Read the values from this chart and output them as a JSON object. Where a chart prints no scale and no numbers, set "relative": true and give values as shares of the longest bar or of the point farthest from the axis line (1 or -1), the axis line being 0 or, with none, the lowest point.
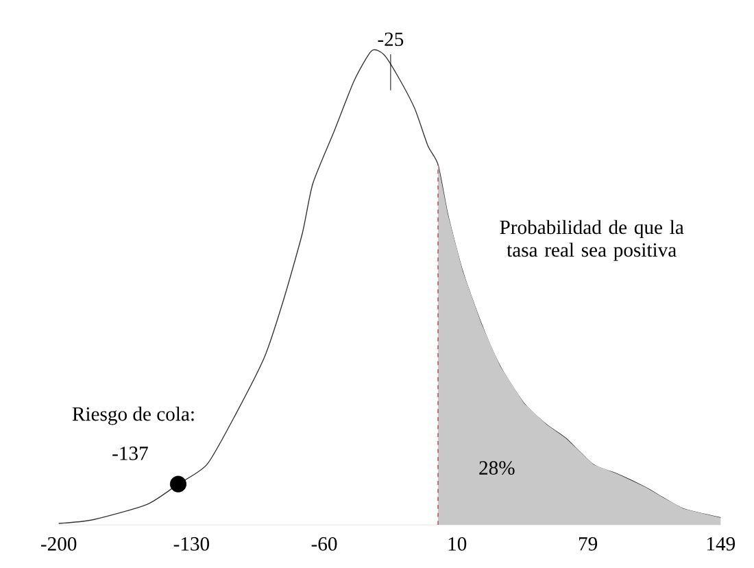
{
  "chart_data": {
    "type": "line",
    "relative": true,
    "grid": false,
    "xlim": [
      -200,
      149
    ],
    "xticks": [
      -200,
      -130,
      -60,
      10,
      79,
      149
    ],
    "series": [
      {
        "color": "#333333",
        "x": [
          -200,
          -181.7,
          -153.5,
          -137,
          -121.7,
          -106.2,
          -91.4,
          -81.5,
          -71.6,
          -66,
          -54.7,
          -44.1,
          -35,
          -28.6,
          -21.6,
          -12.4,
          -5.4,
          0,
          5.2,
          13,
          22.8,
          32.7,
          45.4,
          57.4,
          67.3,
          82,
          94.8,
          109.6,
          118,
          129.3,
          149
        ],
        "values": [
          0.003,
          0.011,
          0.043,
          0.086,
          0.128,
          0.237,
          0.355,
          0.474,
          0.614,
          0.72,
          0.831,
          0.938,
          1.0,
          0.992,
          0.949,
          0.879,
          0.8,
          0.76,
          0.654,
          0.535,
          0.425,
          0.335,
          0.256,
          0.211,
          0.183,
          0.127,
          0.107,
          0.079,
          0.059,
          0.034,
          0.015
        ]
      },
      {
        "type": "area",
        "color": "#c8c8c8",
        "x": [
          0,
          5.2,
          13,
          22.8,
          32.7,
          45.4,
          57.4,
          67.3,
          82,
          94.8,
          109.6,
          118,
          129.3,
          149
        ],
        "values": [
          0.76,
          0.654,
          0.535,
          0.425,
          0.335,
          0.256,
          0.211,
          0.183,
          0.127,
          0.107,
          0.079,
          0.059,
          0.034,
          0.015
        ]
      },
      {
        "type": "scatter",
        "color": "#000000",
        "x": [
          -137
        ],
        "values": [
          0.086
        ]
      }
    ],
    "ref_lines": [
      {
        "axis": "x",
        "value": 0,
        "color": "#c0504d",
        "line_style": "dashed"
      }
    ],
    "annotations": [
      "Probabilidad de que la tasa real sea positiva",
      "28%",
      "Riesgo de cola:",
      {
        "text": "-137",
        "x": -137,
        "y": 0.086
      },
      {
        "text": "-25",
        "x": -25,
        "y": 0.97
      }
    ]
  }
}
